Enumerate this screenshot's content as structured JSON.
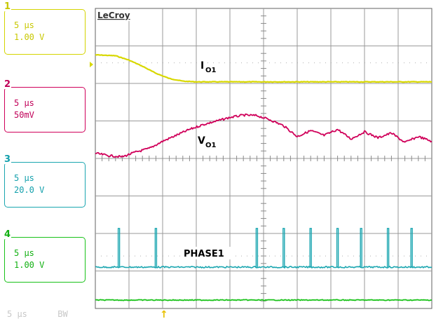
{
  "brand": "LeCroy",
  "channels": [
    {
      "num": "1",
      "timebase": "5 μs",
      "scale": "1.00 V",
      "color": "#d8d800"
    },
    {
      "num": "2",
      "timebase": "5 μs",
      "scale": "50mV",
      "color": "#d0005a"
    },
    {
      "num": "3",
      "timebase": "5 μs",
      "scale": "20.0 V",
      "color": "#1aa6b0"
    },
    {
      "num": "4",
      "timebase": "5 μs",
      "scale": "1.00 V",
      "color": "#19c219"
    }
  ],
  "footer": {
    "timebase": "5 μs",
    "bw": "BW"
  },
  "chart_data": {
    "type": "line",
    "x_unit": "μs",
    "xlim": [
      0,
      50
    ],
    "x_divisions": 10,
    "y_divisions": 8,
    "grid": true,
    "series": [
      {
        "name": "IO1",
        "color": "#d8d800",
        "x": [
          0,
          3,
          5,
          7,
          9,
          11,
          13,
          15,
          50
        ],
        "y": [
          0.55,
          0.5,
          0.25,
          -0.1,
          -0.5,
          -0.8,
          -0.95,
          -0.99,
          -0.99
        ]
      },
      {
        "name": "VO1",
        "color": "#d0005a",
        "x": [
          0,
          2,
          4,
          6,
          8,
          10,
          12,
          14,
          16,
          18,
          20,
          22,
          24,
          26,
          28,
          30,
          32,
          34,
          36,
          38,
          40,
          42,
          44,
          46,
          48,
          50
        ],
        "y": [
          -0.4,
          -0.5,
          -0.55,
          -0.35,
          -0.2,
          0.1,
          0.35,
          0.6,
          0.8,
          0.95,
          1.1,
          1.2,
          1.18,
          1.0,
          0.75,
          0.3,
          0.55,
          0.35,
          0.6,
          0.2,
          0.5,
          0.25,
          0.45,
          0.05,
          0.3,
          0.1
        ]
      },
      {
        "name": "PHASE1",
        "color": "#1aa6b0",
        "baseline": 0,
        "pulse_times": [
          3.5,
          9,
          24,
          28,
          32,
          36,
          39.5,
          43.5,
          47
        ],
        "pulse_heights": [
          1.15,
          1.15,
          1.15,
          1.15,
          1.15,
          1.15,
          1.15,
          1.15,
          1.15
        ]
      },
      {
        "name": "CH4",
        "color": "#19c219",
        "x": [
          0,
          50
        ],
        "y": [
          0,
          0
        ]
      }
    ],
    "annotations": [
      {
        "text": "IO1",
        "main": "I",
        "sub": "O1"
      },
      {
        "text": "VO1",
        "main": "V",
        "sub": "O1"
      },
      {
        "text": "PHASE1",
        "main": "PHASE1",
        "sub": ""
      }
    ],
    "trigger_marker": "↑"
  }
}
